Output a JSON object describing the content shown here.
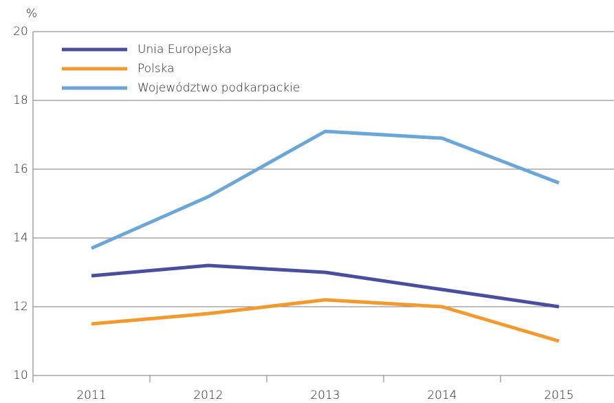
{
  "chart_data": {
    "type": "line",
    "y_label": "%",
    "categories": [
      "2011",
      "2012",
      "2013",
      "2014",
      "2015"
    ],
    "series": [
      {
        "name": "Unia Europejska",
        "color": "#4a4e9f",
        "values": [
          12.9,
          13.2,
          13.0,
          12.5,
          12.0
        ]
      },
      {
        "name": "Polska",
        "color": "#f29a2e",
        "values": [
          11.5,
          11.8,
          12.2,
          12.0,
          11.0
        ]
      },
      {
        "name": "Województwo podkarpackie",
        "color": "#6aa6d8",
        "values": [
          13.7,
          15.2,
          17.1,
          16.9,
          15.6
        ]
      }
    ],
    "ylim": [
      10,
      20
    ],
    "yticks": [
      10,
      12,
      14,
      16,
      18,
      20
    ],
    "grid": true,
    "legend": "upper left"
  }
}
